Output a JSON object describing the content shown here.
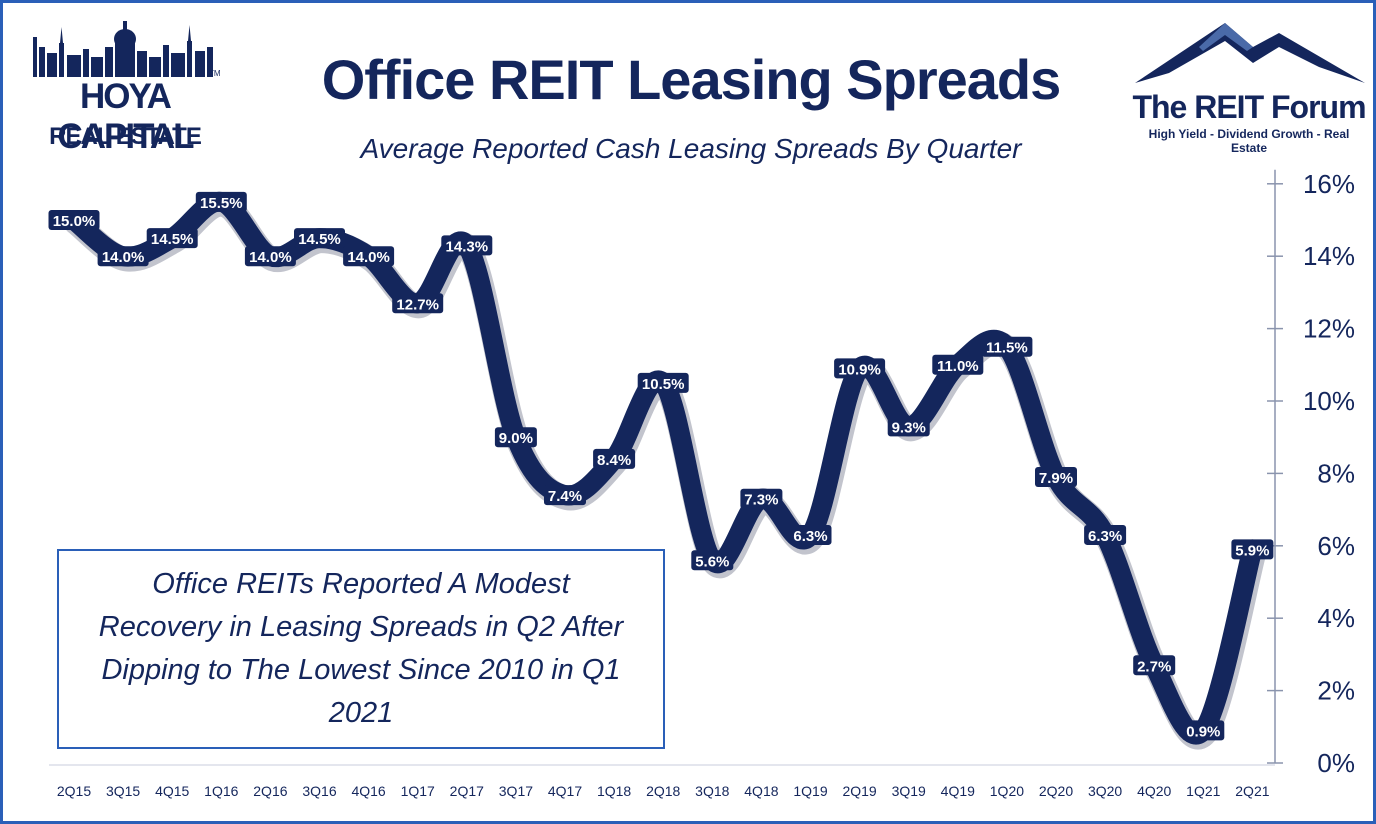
{
  "header": {
    "title": "Office REIT Leasing Spreads",
    "subtitle": "Average Reported Cash Leasing Spreads By Quarter"
  },
  "logos": {
    "left": {
      "name": "HOYA CAPITAL",
      "sub": "REAL ESTATE",
      "tm": "TM"
    },
    "right": {
      "name": "The REIT Forum",
      "tagline": "High Yield - Dividend Growth - Real Estate"
    }
  },
  "callout": {
    "text": "Office REITs Reported A Modest Recovery in Leasing Spreads in Q2 After Dipping to The Lowest Since 2010 in Q1 2021"
  },
  "colors": {
    "line": "#14265c",
    "frame": "#2a5fb8",
    "text": "#14265c"
  },
  "chart_data": {
    "type": "line",
    "title": "Office REIT Leasing Spreads",
    "subtitle": "Average Reported Cash Leasing Spreads By Quarter",
    "categories": [
      "2Q15",
      "3Q15",
      "4Q15",
      "1Q16",
      "2Q16",
      "3Q16",
      "4Q16",
      "1Q17",
      "2Q17",
      "3Q17",
      "4Q17",
      "1Q18",
      "2Q18",
      "3Q18",
      "4Q18",
      "1Q19",
      "2Q19",
      "3Q19",
      "4Q19",
      "1Q20",
      "2Q20",
      "3Q20",
      "4Q20",
      "1Q21",
      "2Q21"
    ],
    "series": [
      {
        "values": [
          15.0,
          14.0,
          14.5,
          15.5,
          14.0,
          14.5,
          14.0,
          12.7,
          14.3,
          9.0,
          7.4,
          8.4,
          10.5,
          5.6,
          7.3,
          6.3,
          10.9,
          9.3,
          11.0,
          11.5,
          7.9,
          6.3,
          2.7,
          0.9,
          5.9
        ],
        "labels": [
          "15.0%",
          "14.0%",
          "14.5%",
          "15.5%",
          "14.0%",
          "14.5%",
          "14.0%",
          "12.7%",
          "14.3%",
          "9.0%",
          "7.4%",
          "8.4%",
          "10.5%",
          "5.6%",
          "7.3%",
          "6.3%",
          "10.9%",
          "9.3%",
          "11.0%",
          "11.5%",
          "7.9%",
          "6.3%",
          "2.7%",
          "0.9%",
          "5.9%"
        ]
      }
    ],
    "y_ticks": [
      0,
      2,
      4,
      6,
      8,
      10,
      12,
      14,
      16
    ],
    "y_tick_labels": [
      "0%",
      "2%",
      "4%",
      "6%",
      "8%",
      "10%",
      "12%",
      "14%",
      "16%"
    ],
    "ylim": [
      0,
      16
    ],
    "y_axis_side": "right",
    "grid": false,
    "legend": "none"
  }
}
